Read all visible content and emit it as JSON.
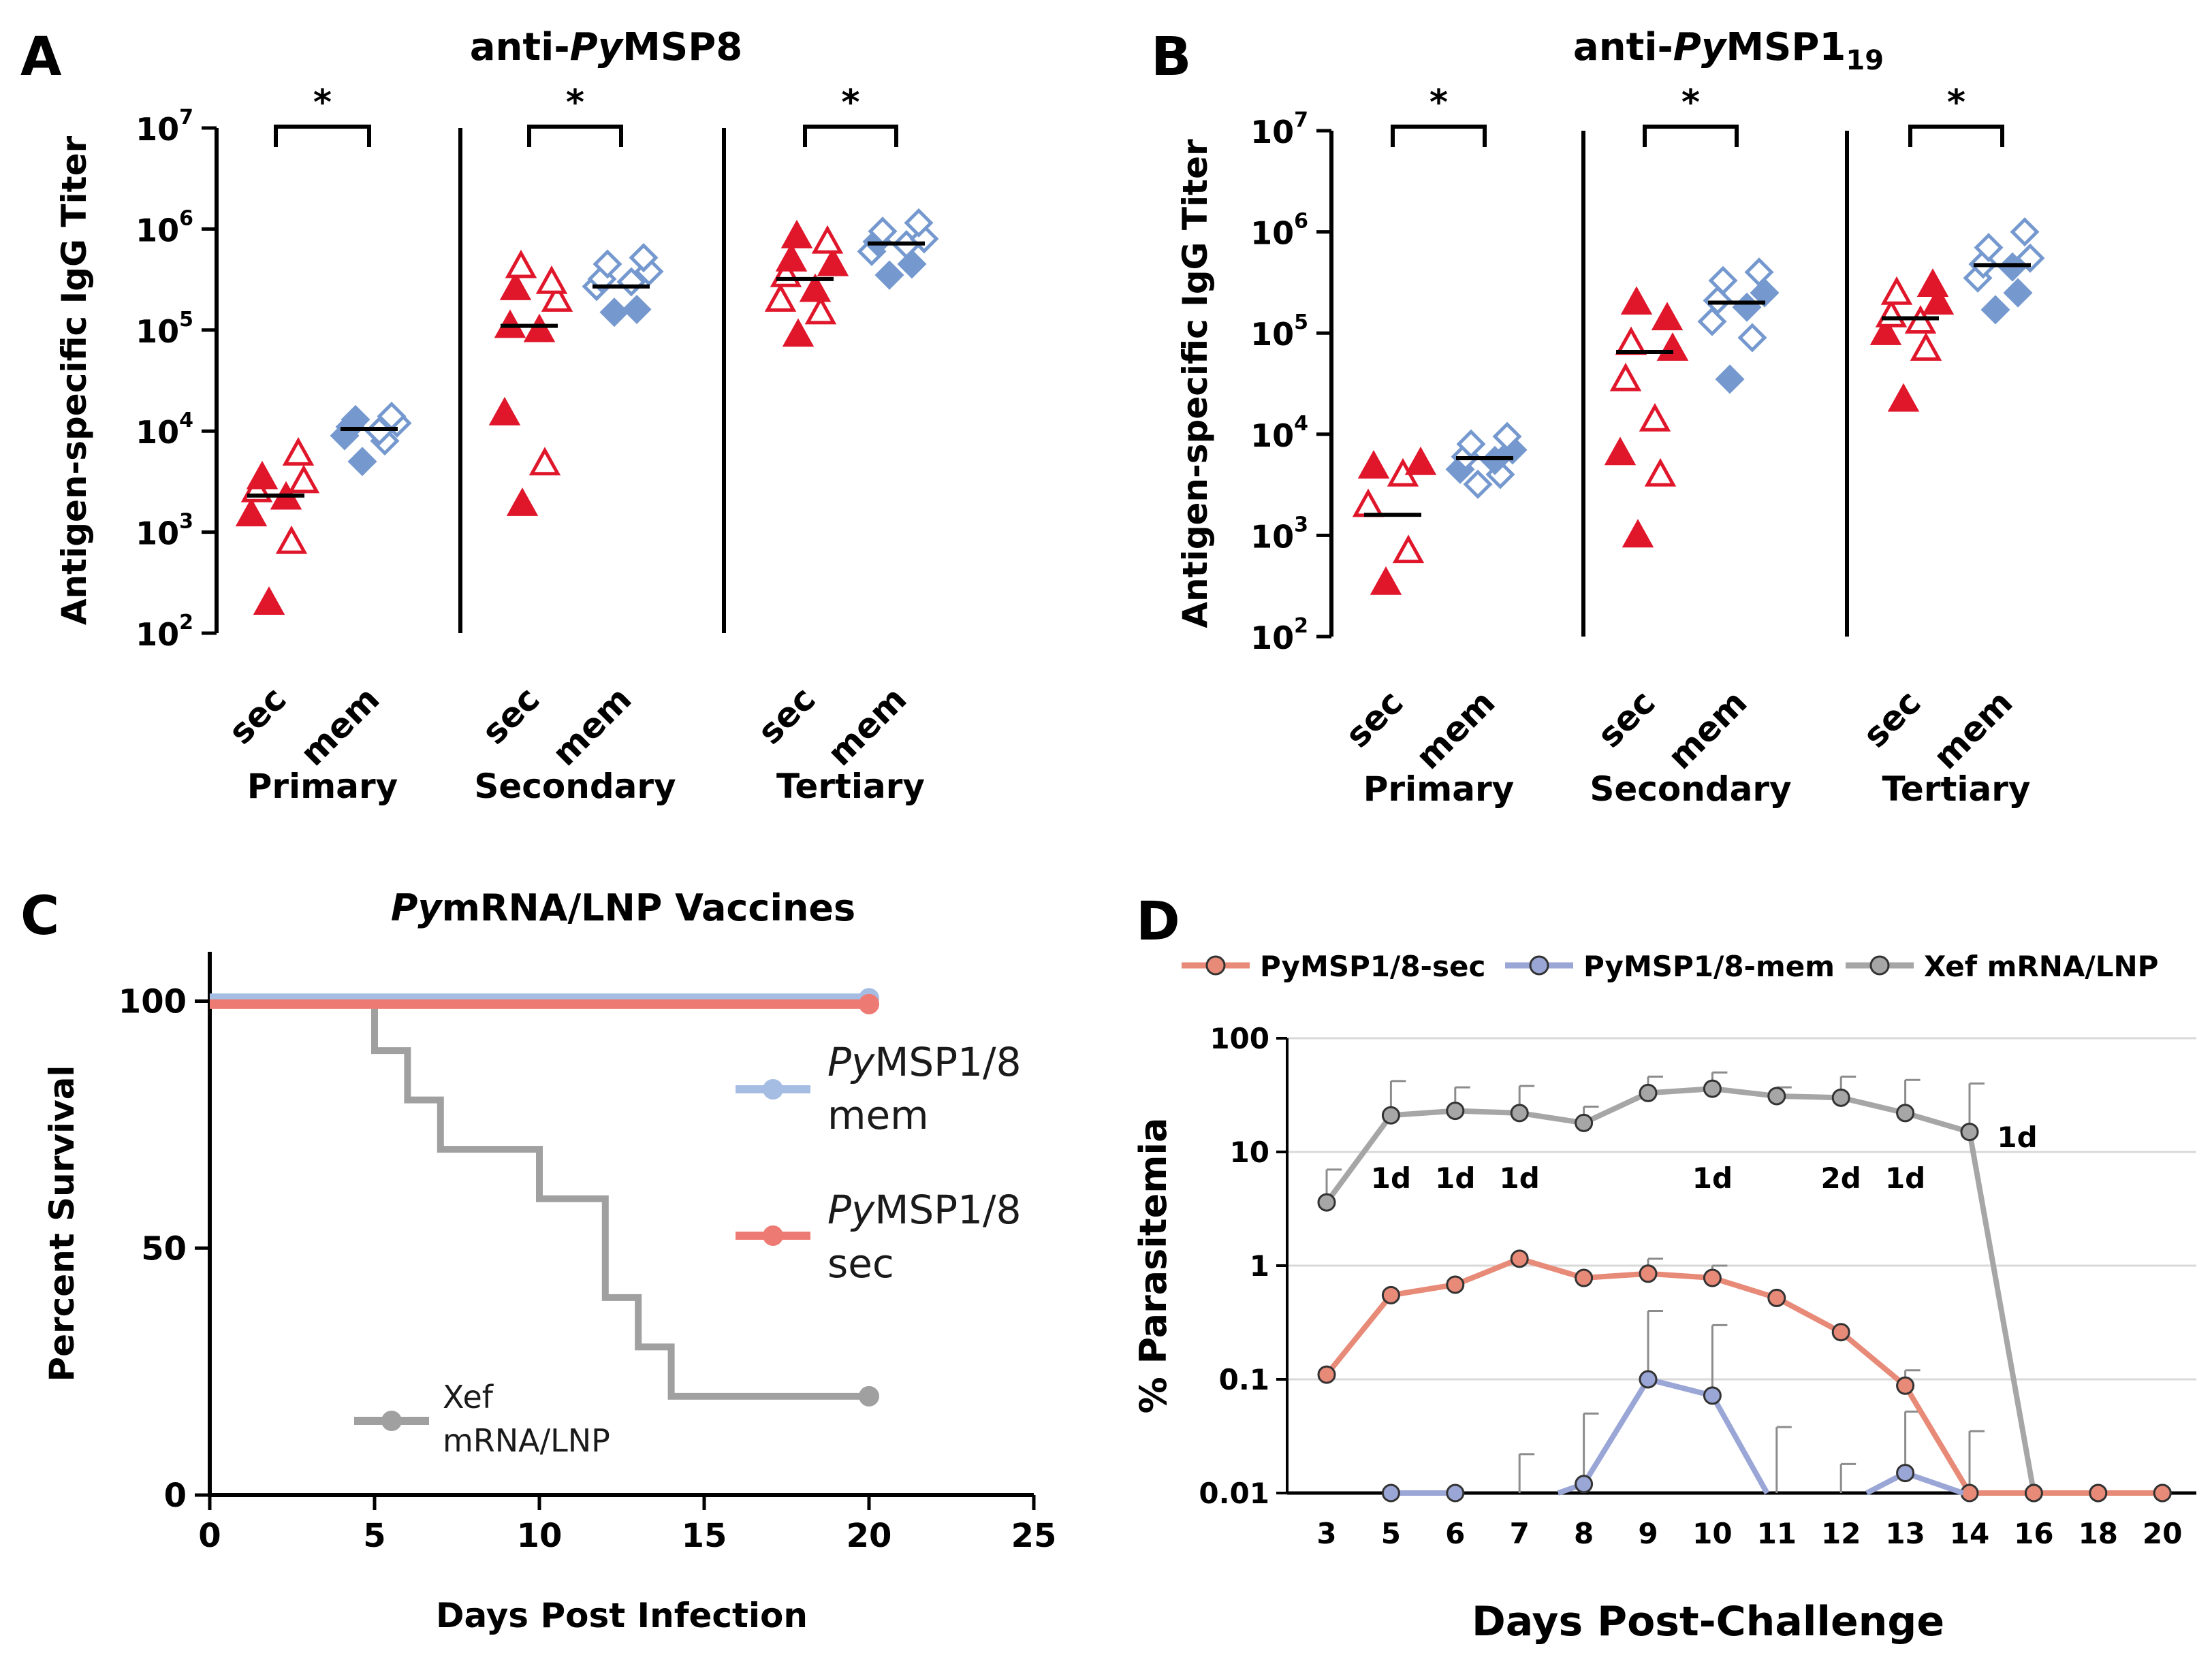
{
  "chart_data": [
    {
      "panel": "A",
      "type": "scatter",
      "title": "anti-PyMSP8",
      "title_parts": {
        "prefix": "anti-",
        "italic": "Py",
        "rest": "MSP8",
        "subscript": ""
      },
      "ylabel": "Antigen-specific IgG Titer",
      "yscale": "log",
      "ylim": [
        100,
        10000000
      ],
      "yticks": [
        {
          "base": "10",
          "exp": "2"
        },
        {
          "base": "10",
          "exp": "3"
        },
        {
          "base": "10",
          "exp": "4"
        },
        {
          "base": "10",
          "exp": "5"
        },
        {
          "base": "10",
          "exp": "6"
        },
        {
          "base": "10",
          "exp": "7"
        }
      ],
      "groups": [
        {
          "name": "Primary",
          "significance": "*",
          "categories": [
            {
              "label": "sec",
              "color": "#e0162b",
              "shape": "triangle",
              "median": 2300,
              "points": [
                {
                  "v": 200,
                  "filled": true
                },
                {
                  "v": 800,
                  "filled": false
                },
                {
                  "v": 1500,
                  "filled": true
                },
                {
                  "v": 2200,
                  "filled": true
                },
                {
                  "v": 2600,
                  "filled": false
                },
                {
                  "v": 3200,
                  "filled": false
                },
                {
                  "v": 3500,
                  "filled": true
                },
                {
                  "v": 6000,
                  "filled": false
                }
              ]
            },
            {
              "label": "mem",
              "color": "#7599cf",
              "shape": "diamond",
              "median": 10500,
              "points": [
                {
                  "v": 5000,
                  "filled": true
                },
                {
                  "v": 8000,
                  "filled": false
                },
                {
                  "v": 9000,
                  "filled": true
                },
                {
                  "v": 10000,
                  "filled": false
                },
                {
                  "v": 11000,
                  "filled": true
                },
                {
                  "v": 12000,
                  "filled": false
                },
                {
                  "v": 13000,
                  "filled": true
                },
                {
                  "v": 14000,
                  "filled": false
                }
              ]
            }
          ]
        },
        {
          "name": "Secondary",
          "significance": "*",
          "categories": [
            {
              "label": "sec",
              "color": "#e0162b",
              "shape": "triangle",
              "median": 110000,
              "points": [
                {
                  "v": 1900,
                  "filled": true
                },
                {
                  "v": 4800,
                  "filled": false
                },
                {
                  "v": 15000,
                  "filled": true
                },
                {
                  "v": 100000,
                  "filled": true
                },
                {
                  "v": 110000,
                  "filled": true
                },
                {
                  "v": 200000,
                  "filled": false
                },
                {
                  "v": 260000,
                  "filled": true
                },
                {
                  "v": 300000,
                  "filled": false
                },
                {
                  "v": 430000,
                  "filled": false
                }
              ]
            },
            {
              "label": "mem",
              "color": "#7599cf",
              "shape": "diamond",
              "median": 270000,
              "points": [
                {
                  "v": 150000,
                  "filled": true
                },
                {
                  "v": 160000,
                  "filled": true
                },
                {
                  "v": 270000,
                  "filled": false
                },
                {
                  "v": 300000,
                  "filled": false
                },
                {
                  "v": 320000,
                  "filled": false
                },
                {
                  "v": 380000,
                  "filled": false
                },
                {
                  "v": 450000,
                  "filled": false
                },
                {
                  "v": 520000,
                  "filled": false
                }
              ]
            }
          ]
        },
        {
          "name": "Tertiary",
          "significance": "*",
          "categories": [
            {
              "label": "sec",
              "color": "#e0162b",
              "shape": "triangle",
              "median": 320000,
              "points": [
                {
                  "v": 90000,
                  "filled": true
                },
                {
                  "v": 150000,
                  "filled": false
                },
                {
                  "v": 200000,
                  "filled": false
                },
                {
                  "v": 250000,
                  "filled": true
                },
                {
                  "v": 350000,
                  "filled": false
                },
                {
                  "v": 450000,
                  "filled": true
                },
                {
                  "v": 500000,
                  "filled": true
                },
                {
                  "v": 750000,
                  "filled": false
                },
                {
                  "v": 850000,
                  "filled": true
                }
              ]
            },
            {
              "label": "mem",
              "color": "#7599cf",
              "shape": "diamond",
              "median": 720000,
              "points": [
                {
                  "v": 350000,
                  "filled": true
                },
                {
                  "v": 450000,
                  "filled": true
                },
                {
                  "v": 600000,
                  "filled": false
                },
                {
                  "v": 700000,
                  "filled": false
                },
                {
                  "v": 750000,
                  "filled": true
                },
                {
                  "v": 800000,
                  "filled": false
                },
                {
                  "v": 950000,
                  "filled": false
                },
                {
                  "v": 1150000,
                  "filled": false
                }
              ]
            }
          ]
        }
      ]
    },
    {
      "panel": "B",
      "type": "scatter",
      "title": "anti-PyMSP1 19",
      "title_parts": {
        "prefix": "anti-",
        "italic": "Py",
        "rest": "MSP1",
        "subscript": "19"
      },
      "ylabel": "Antigen-specific IgG Titer",
      "yscale": "log",
      "ylim": [
        100,
        10000000
      ],
      "yticks": [
        {
          "base": "10",
          "exp": "2"
        },
        {
          "base": "10",
          "exp": "3"
        },
        {
          "base": "10",
          "exp": "4"
        },
        {
          "base": "10",
          "exp": "5"
        },
        {
          "base": "10",
          "exp": "6"
        },
        {
          "base": "10",
          "exp": "7"
        }
      ],
      "groups": [
        {
          "name": "Primary",
          "significance": "*",
          "categories": [
            {
              "label": "sec",
              "color": "#e0162b",
              "shape": "triangle",
              "median": 1600,
              "points": [
                {
                  "v": 340,
                  "filled": true
                },
                {
                  "v": 700,
                  "filled": false
                },
                {
                  "v": 2000,
                  "filled": false
                },
                {
                  "v": 4000,
                  "filled": false
                },
                {
                  "v": 4800,
                  "filled": true
                },
                {
                  "v": 5200,
                  "filled": true
                }
              ]
            },
            {
              "label": "mem",
              "color": "#7599cf",
              "shape": "diamond",
              "median": 5800,
              "points": [
                {
                  "v": 3200,
                  "filled": false
                },
                {
                  "v": 4000,
                  "filled": false
                },
                {
                  "v": 4500,
                  "filled": true
                },
                {
                  "v": 5500,
                  "filled": true
                },
                {
                  "v": 6000,
                  "filled": false
                },
                {
                  "v": 7000,
                  "filled": true
                },
                {
                  "v": 8000,
                  "filled": false
                },
                {
                  "v": 9500,
                  "filled": false
                }
              ]
            }
          ]
        },
        {
          "name": "Secondary",
          "significance": "*",
          "categories": [
            {
              "label": "sec",
              "color": "#e0162b",
              "shape": "triangle",
              "median": 65000,
              "points": [
                {
                  "v": 1000,
                  "filled": true
                },
                {
                  "v": 4000,
                  "filled": false
                },
                {
                  "v": 6500,
                  "filled": true
                },
                {
                  "v": 14000,
                  "filled": false
                },
                {
                  "v": 35000,
                  "filled": false
                },
                {
                  "v": 70000,
                  "filled": true
                },
                {
                  "v": 80000,
                  "filled": false
                },
                {
                  "v": 140000,
                  "filled": true
                },
                {
                  "v": 200000,
                  "filled": true
                }
              ]
            },
            {
              "label": "mem",
              "color": "#7599cf",
              "shape": "diamond",
              "median": 200000,
              "points": [
                {
                  "v": 35000,
                  "filled": true
                },
                {
                  "v": 90000,
                  "filled": false
                },
                {
                  "v": 130000,
                  "filled": false
                },
                {
                  "v": 180000,
                  "filled": true
                },
                {
                  "v": 210000,
                  "filled": false
                },
                {
                  "v": 250000,
                  "filled": true
                },
                {
                  "v": 330000,
                  "filled": false
                },
                {
                  "v": 400000,
                  "filled": false
                }
              ]
            }
          ]
        },
        {
          "name": "Tertiary",
          "significance": "*",
          "categories": [
            {
              "label": "sec",
              "color": "#e0162b",
              "shape": "triangle",
              "median": 140000,
              "points": [
                {
                  "v": 22000,
                  "filled": true
                },
                {
                  "v": 70000,
                  "filled": false
                },
                {
                  "v": 100000,
                  "filled": true
                },
                {
                  "v": 130000,
                  "filled": false
                },
                {
                  "v": 150000,
                  "filled": false
                },
                {
                  "v": 200000,
                  "filled": true
                },
                {
                  "v": 250000,
                  "filled": false
                },
                {
                  "v": 300000,
                  "filled": true
                }
              ]
            },
            {
              "label": "mem",
              "color": "#7599cf",
              "shape": "diamond",
              "median": 470000,
              "points": [
                {
                  "v": 170000,
                  "filled": true
                },
                {
                  "v": 250000,
                  "filled": true
                },
                {
                  "v": 350000,
                  "filled": false
                },
                {
                  "v": 450000,
                  "filled": true
                },
                {
                  "v": 480000,
                  "filled": false
                },
                {
                  "v": 550000,
                  "filled": false
                },
                {
                  "v": 700000,
                  "filled": false
                },
                {
                  "v": 1000000,
                  "filled": false
                }
              ]
            }
          ]
        }
      ]
    },
    {
      "panel": "C",
      "type": "line",
      "subtype": "step",
      "title": "PymRNA/LNP Vaccines",
      "title_parts": {
        "italic": "Py",
        "rest": "mRNA/LNP Vaccines"
      },
      "xlabel": "Days Post Infection",
      "ylabel": "Percent Survival",
      "xlim": [
        0,
        25
      ],
      "ylim": [
        0,
        110
      ],
      "xticks": [
        0,
        5,
        10,
        15,
        20,
        25
      ],
      "yticks": [
        0,
        50,
        100
      ],
      "series": [
        {
          "name": "PyMSP1/8 mem",
          "legend_lines": [
            "PyMSP1/8",
            "mem"
          ],
          "legend_italic_prefix": "Py",
          "color": "#a6bde3",
          "steps": [
            [
              0,
              100.6
            ],
            [
              20,
              100.6
            ]
          ]
        },
        {
          "name": "PyMSP1/8 sec",
          "legend_lines": [
            "PyMSP1/8",
            "sec"
          ],
          "legend_italic_prefix": "Py",
          "color": "#ee7b73",
          "steps": [
            [
              0,
              99.4
            ],
            [
              20,
              99.4
            ]
          ]
        },
        {
          "name": "Xef mRNA/LNP",
          "legend_lines": [
            "Xef",
            "mRNA/LNP"
          ],
          "legend_italic_prefix": "",
          "color": "#a0a0a0",
          "steps": [
            [
              0,
              100
            ],
            [
              5,
              90
            ],
            [
              6,
              80
            ],
            [
              7,
              70
            ],
            [
              10,
              60
            ],
            [
              12,
              40
            ],
            [
              13,
              30
            ],
            [
              14,
              20
            ],
            [
              20,
              20
            ]
          ]
        }
      ]
    },
    {
      "panel": "D",
      "type": "line",
      "title": "",
      "xlabel": "Days Post-Challenge",
      "ylabel": "% Parasitemia",
      "yscale": "log",
      "ylim": [
        0.01,
        100
      ],
      "yticks": [
        "0.01",
        "0.1",
        "1",
        "10",
        "100"
      ],
      "categories": [
        "3",
        "5",
        "6",
        "7",
        "8",
        "9",
        "10",
        "11",
        "12",
        "13",
        "14",
        "16",
        "18",
        "20"
      ],
      "series": [
        {
          "name": "PyMSP1/8-sec",
          "color": "#e88a78",
          "values": [
            0.11,
            0.55,
            0.68,
            1.15,
            0.78,
            0.85,
            0.78,
            0.52,
            0.26,
            0.088,
            0.01,
            0.01,
            0.01,
            0.01
          ],
          "error": [
            null,
            null,
            null,
            null,
            null,
            1.15,
            1.0,
            null,
            null,
            0.12,
            null,
            null,
            null,
            null
          ]
        },
        {
          "name": "PyMSP1/8-mem",
          "color": "#9aa6d6",
          "values": [
            null,
            0.01,
            0.01,
            null,
            0.012,
            0.1,
            0.072,
            null,
            null,
            0.015,
            null,
            null,
            null,
            null
          ],
          "error": [
            null,
            null,
            null,
            0.022,
            0.05,
            0.4,
            0.3,
            0.038,
            0.018,
            0.052,
            0.035,
            null,
            null,
            null
          ]
        },
        {
          "name": "Xef mRNA/LNP",
          "color": "#a6a6a6",
          "values": [
            3.6,
            21,
            23,
            22,
            18,
            33,
            36,
            31,
            30,
            22,
            15,
            0.01,
            0.01,
            0.01
          ],
          "error": [
            7,
            42,
            37,
            38,
            25,
            46,
            50,
            37,
            46,
            43,
            40,
            null,
            null,
            null
          ]
        }
      ],
      "annotations": [
        {
          "x": "5",
          "text": "1d"
        },
        {
          "x": "6",
          "text": "1d"
        },
        {
          "x": "7",
          "text": "1d"
        },
        {
          "x": "10",
          "text": "1d"
        },
        {
          "x": "12",
          "text": "2d"
        },
        {
          "x": "13",
          "text": "1d"
        },
        {
          "x": "14",
          "text": "1d"
        }
      ]
    }
  ]
}
